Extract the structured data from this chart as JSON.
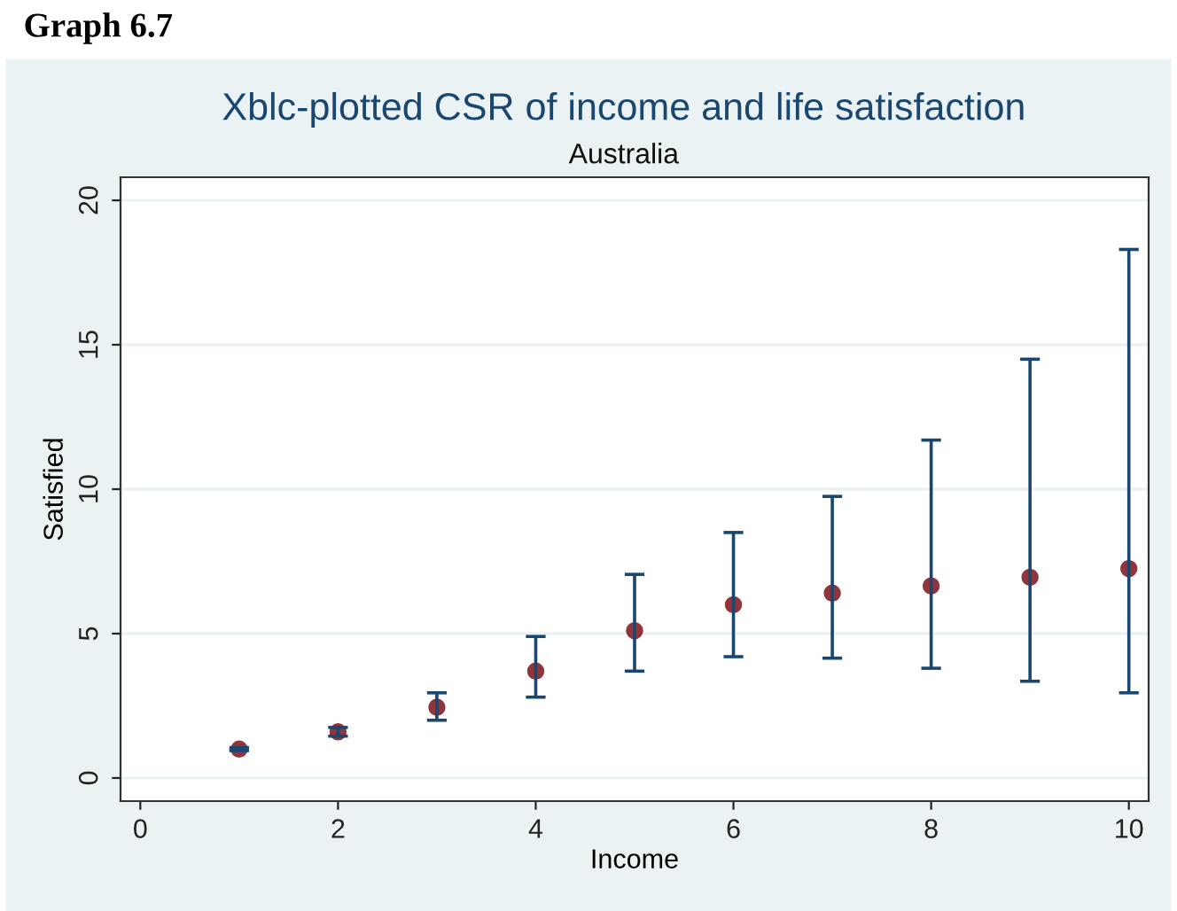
{
  "chart_data": {
    "type": "scatter",
    "title": "Xblc-plotted CSR of income and life satisfaction",
    "subtitle": "Australia",
    "xlabel": "Income",
    "ylabel": "Satisfied",
    "annotations": [
      "Graph 6.7"
    ],
    "x": [
      1,
      2,
      3,
      4,
      5,
      6,
      7,
      8,
      9,
      10
    ],
    "series": [
      {
        "color": "#90353b",
        "values": [
          1.0,
          1.6,
          2.45,
          3.7,
          5.1,
          6.0,
          6.4,
          6.65,
          6.95,
          7.25
        ],
        "errors": [
          [
            0.95,
            1.05
          ],
          [
            1.45,
            1.75
          ],
          [
            2.0,
            2.95
          ],
          [
            2.8,
            4.9
          ],
          [
            3.7,
            7.05
          ],
          [
            4.2,
            8.5
          ],
          [
            4.15,
            9.75
          ],
          [
            3.8,
            11.7
          ],
          [
            3.35,
            14.5
          ],
          [
            2.95,
            18.3
          ]
        ]
      }
    ],
    "xlim": [
      -0.2,
      10.2
    ],
    "ylim": [
      -0.8,
      20.8
    ],
    "xticks": [
      0,
      2,
      4,
      6,
      8,
      10
    ],
    "yticks": [
      0,
      5,
      10,
      15,
      20
    ],
    "grid": "y",
    "marker": "circle",
    "legend": false
  }
}
